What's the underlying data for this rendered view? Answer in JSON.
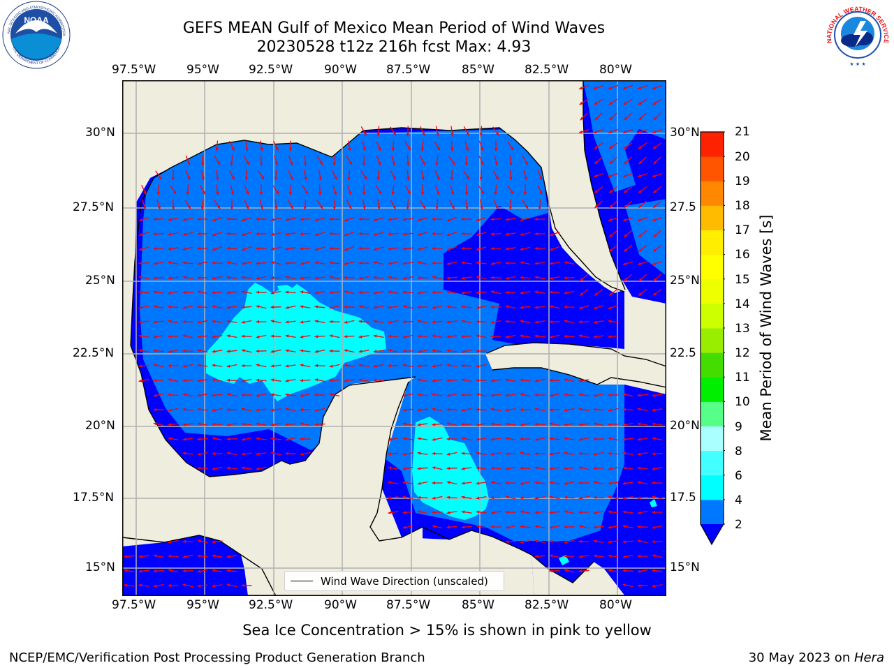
{
  "header": {
    "title_line1": "GEFS MEAN Gulf of Mexico Mean Period of Wind Waves",
    "title_line2": "20230528 t12z 216h fcst   Max: 4.93"
  },
  "map": {
    "lon_labels": [
      "97.5°W",
      "95°W",
      "92.5°W",
      "90°W",
      "87.5°W",
      "85°W",
      "82.5°W",
      "80°W"
    ],
    "lat_labels_left": [
      "30°N",
      "27.5°N",
      "25°N",
      "22.5°N",
      "20°N",
      "17.5°N",
      "15°N"
    ],
    "lat_labels_right": [
      "30°N",
      "27.5",
      "25°N",
      "22.5",
      "20°N",
      "17.5",
      "15°N"
    ],
    "land_color": "#efedde",
    "legend_label": "Wind Wave Direction (unscaled)"
  },
  "colorbar": {
    "label": "Mean Period of Wind Waves [s]",
    "ticks": [
      "2",
      "4",
      "6",
      "8",
      "9",
      "10",
      "11",
      "12",
      "13",
      "14",
      "15",
      "16",
      "17",
      "18",
      "19",
      "20",
      "21"
    ],
    "colors": [
      "#0077ff",
      "#00ffff",
      "#44ffff",
      "#aaffff",
      "#55ff88",
      "#00ee00",
      "#44dd00",
      "#99ee00",
      "#ccff00",
      "#eeff00",
      "#ffff00",
      "#ffee00",
      "#ffbb00",
      "#ff8800",
      "#ff5500",
      "#ff2200"
    ],
    "under_color": "#0000ff"
  },
  "footer": {
    "sea_ice_note": "Sea Ice Concentration > 15% is shown in pink to yellow",
    "credit": "NCEP/EMC/Verification Post Processing Product Generation Branch",
    "date": "30 May 2023 on ",
    "host": "Hera"
  },
  "logos": {
    "noaa_text": "NOAA",
    "noaa_ring_top": "NATIONAL OCEANIC AND ATMOSPHERIC ADMINISTRATION",
    "noaa_ring_bottom": "U.S. DEPARTMENT OF COMMERCE",
    "nws_ring": "NATIONAL WEATHER SERVICE"
  }
}
